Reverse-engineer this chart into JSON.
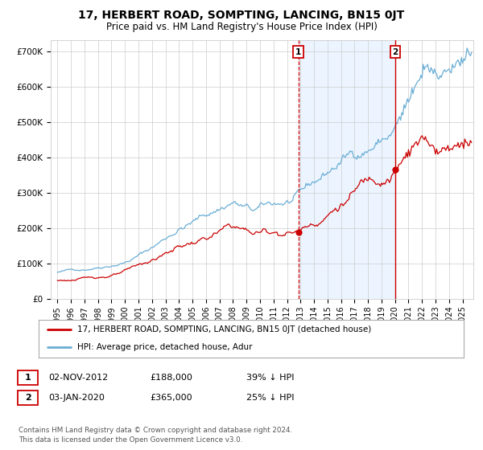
{
  "title": "17, HERBERT ROAD, SOMPTING, LANCING, BN15 0JT",
  "subtitle": "Price paid vs. HM Land Registry's House Price Index (HPI)",
  "legend_line1": "17, HERBERT ROAD, SOMPTING, LANCING, BN15 0JT (detached house)",
  "legend_line2": "HPI: Average price, detached house, Adur",
  "annotation1_label": "1",
  "annotation1_date": "02-NOV-2012",
  "annotation1_price": "£188,000",
  "annotation1_hpi": "39% ↓ HPI",
  "annotation2_label": "2",
  "annotation2_date": "03-JAN-2020",
  "annotation2_price": "£365,000",
  "annotation2_hpi": "25% ↓ HPI",
  "footer": "Contains HM Land Registry data © Crown copyright and database right 2024.\nThis data is licensed under the Open Government Licence v3.0.",
  "sale1_year": 2012.84,
  "sale1_price": 188000,
  "sale2_year": 2020.01,
  "sale2_price": 365000,
  "hpi_color": "#6baed6",
  "hpi_fill_color": "#ddeeff",
  "price_color": "#cc0000",
  "annotation_box_color": "#cc0000",
  "vline_color": "#cc0000",
  "background_color": "#ffffff",
  "grid_color": "#cccccc",
  "ylim": [
    0,
    730000
  ],
  "yticks": [
    0,
    100000,
    200000,
    300000,
    400000,
    500000,
    600000,
    700000
  ],
  "ytick_labels": [
    "£0",
    "£100K",
    "£200K",
    "£300K",
    "£400K",
    "£500K",
    "£600K",
    "£700K"
  ],
  "xlim_start": 1994.5,
  "xlim_end": 2025.8
}
